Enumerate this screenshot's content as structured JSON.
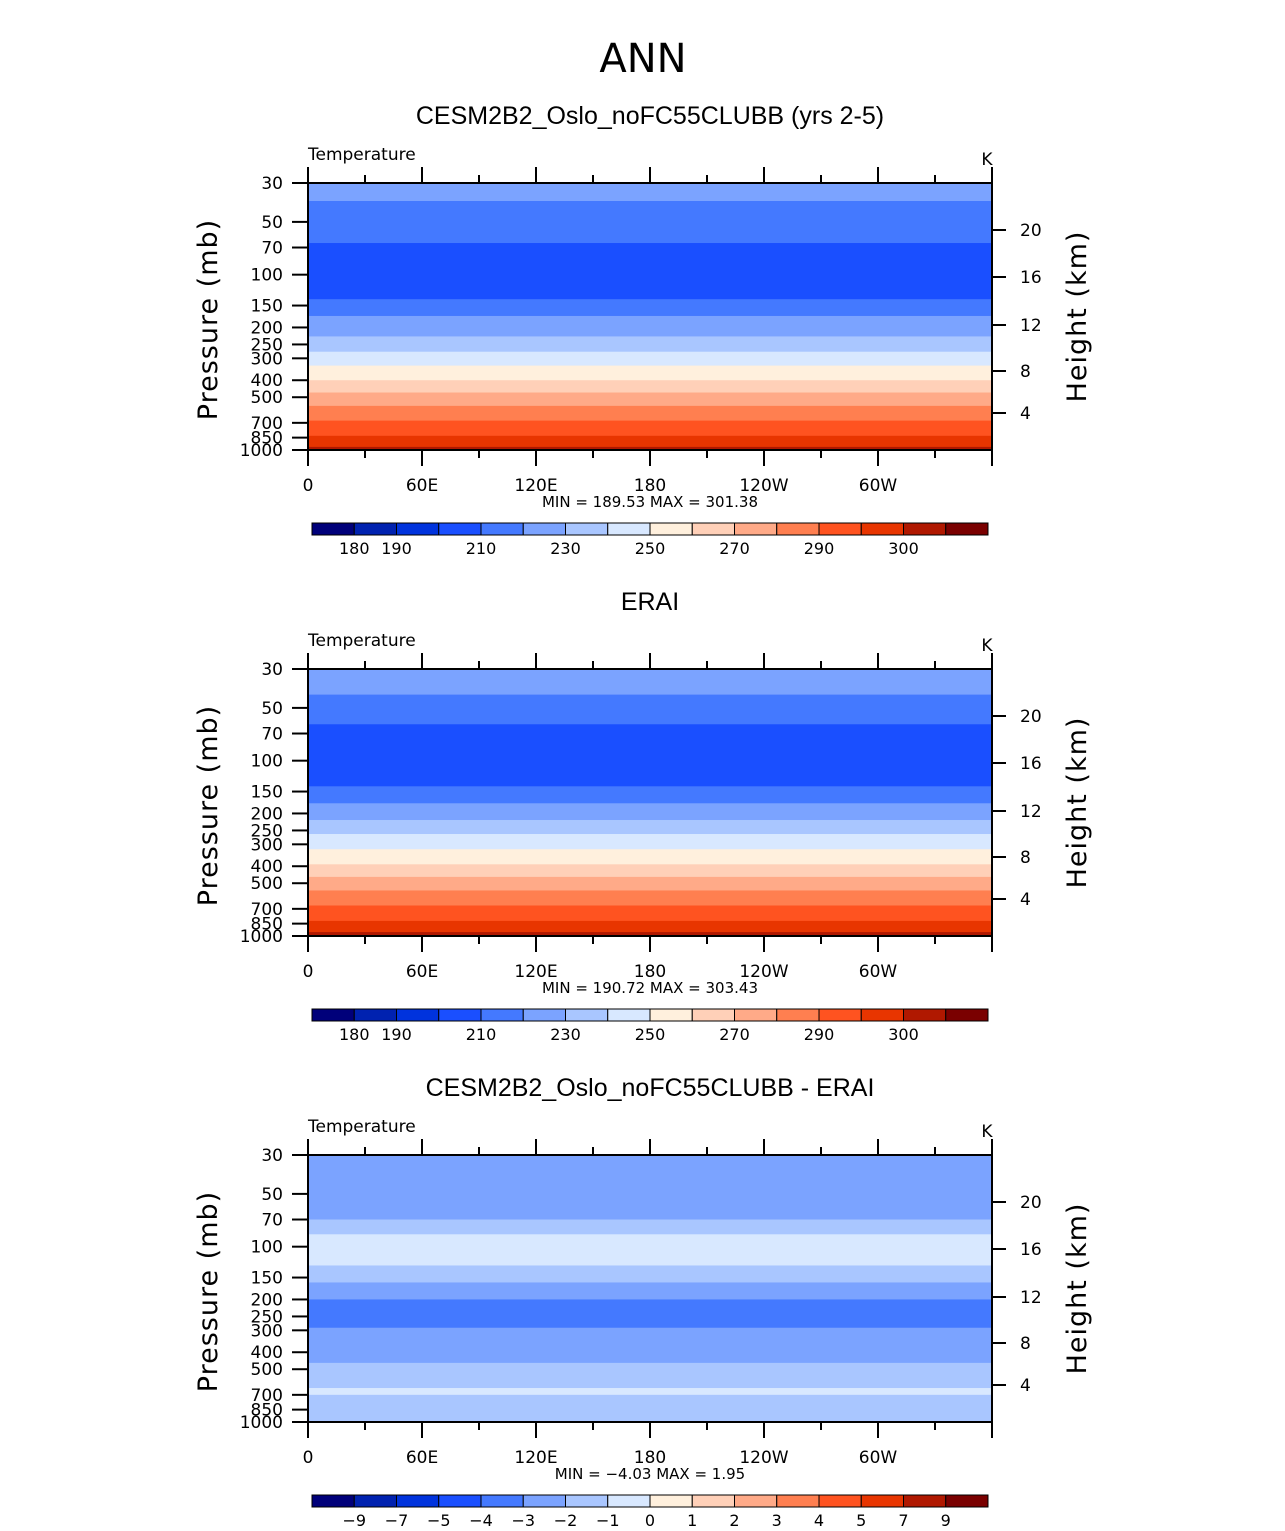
{
  "figure": {
    "title": "ANN",
    "colors": {
      "frame": "#000000",
      "text": "#000000",
      "background": "#ffffff"
    }
  },
  "chart_data": [
    {
      "type": "heatmap",
      "title": "CESM2B2_Oslo_noFC55CLUBB (yrs 2-5)",
      "variable_label": "Temperature",
      "units_label": "K",
      "ylabel_left": "Pressure (mb)",
      "ylabel_right": "Height (km)",
      "x_ticks": [
        "0",
        "60E",
        "120E",
        "180",
        "120W",
        "60W"
      ],
      "y_ticks_pressure": [
        "30",
        "50",
        "70",
        "100",
        "150",
        "200",
        "250",
        "300",
        "400",
        "500",
        "700",
        "850",
        "1000"
      ],
      "y_ticks_height": [
        "20",
        "16",
        "12",
        "8",
        "4"
      ],
      "stats_text": "MIN = 189.53   MAX = 301.38",
      "min": 189.53,
      "max": 301.38,
      "colorbar_labels": [
        "180",
        "190",
        "210",
        "230",
        "250",
        "270",
        "290",
        "300"
      ],
      "colorbar_colors": [
        "#00007a",
        "#0022b0",
        "#0033dd",
        "#1a4fff",
        "#4479ff",
        "#7ba3ff",
        "#a9c6ff",
        "#d8e8ff",
        "#fff0dd",
        "#ffd0b8",
        "#ffaa88",
        "#ff7f50",
        "#ff5320",
        "#e83500",
        "#b01800",
        "#7a0000"
      ],
      "layers": [
        {
          "p_top": 30,
          "p_bottom": 38,
          "color": "#7ba3ff"
        },
        {
          "p_top": 38,
          "p_bottom": 66,
          "color": "#4479ff"
        },
        {
          "p_top": 66,
          "p_bottom": 138,
          "color": "#1a4fff"
        },
        {
          "p_top": 138,
          "p_bottom": 172,
          "color": "#4479ff"
        },
        {
          "p_top": 172,
          "p_bottom": 225,
          "color": "#7ba3ff"
        },
        {
          "p_top": 225,
          "p_bottom": 275,
          "color": "#a9c6ff"
        },
        {
          "p_top": 275,
          "p_bottom": 330,
          "color": "#d8e8ff"
        },
        {
          "p_top": 330,
          "p_bottom": 400,
          "color": "#fff0dd"
        },
        {
          "p_top": 400,
          "p_bottom": 470,
          "color": "#ffd0b8"
        },
        {
          "p_top": 470,
          "p_bottom": 560,
          "color": "#ffaa88"
        },
        {
          "p_top": 560,
          "p_bottom": 680,
          "color": "#ff7f50"
        },
        {
          "p_top": 680,
          "p_bottom": 830,
          "color": "#ff5320"
        },
        {
          "p_top": 830,
          "p_bottom": 960,
          "color": "#e83500"
        },
        {
          "p_top": 960,
          "p_bottom": 1000,
          "color": "#b01800"
        }
      ]
    },
    {
      "type": "heatmap",
      "title": "ERAI",
      "variable_label": "Temperature",
      "units_label": "K",
      "ylabel_left": "Pressure (mb)",
      "ylabel_right": "Height (km)",
      "x_ticks": [
        "0",
        "60E",
        "120E",
        "180",
        "120W",
        "60W"
      ],
      "y_ticks_pressure": [
        "30",
        "50",
        "70",
        "100",
        "150",
        "200",
        "250",
        "300",
        "400",
        "500",
        "700",
        "850",
        "1000"
      ],
      "y_ticks_height": [
        "20",
        "16",
        "12",
        "8",
        "4"
      ],
      "stats_text": "MIN = 190.72   MAX = 303.43",
      "min": 190.72,
      "max": 303.43,
      "colorbar_labels": [
        "180",
        "190",
        "210",
        "230",
        "250",
        "270",
        "290",
        "300"
      ],
      "colorbar_colors": [
        "#00007a",
        "#0022b0",
        "#0033dd",
        "#1a4fff",
        "#4479ff",
        "#7ba3ff",
        "#a9c6ff",
        "#d8e8ff",
        "#fff0dd",
        "#ffd0b8",
        "#ffaa88",
        "#ff7f50",
        "#ff5320",
        "#e83500",
        "#b01800",
        "#7a0000"
      ],
      "layers": [
        {
          "p_top": 30,
          "p_bottom": 42,
          "color": "#7ba3ff"
        },
        {
          "p_top": 42,
          "p_bottom": 62,
          "color": "#4479ff"
        },
        {
          "p_top": 62,
          "p_bottom": 140,
          "color": "#1a4fff"
        },
        {
          "p_top": 140,
          "p_bottom": 175,
          "color": "#4479ff"
        },
        {
          "p_top": 175,
          "p_bottom": 218,
          "color": "#7ba3ff"
        },
        {
          "p_top": 218,
          "p_bottom": 262,
          "color": "#a9c6ff"
        },
        {
          "p_top": 262,
          "p_bottom": 320,
          "color": "#d8e8ff"
        },
        {
          "p_top": 320,
          "p_bottom": 390,
          "color": "#fff0dd"
        },
        {
          "p_top": 390,
          "p_bottom": 460,
          "color": "#ffd0b8"
        },
        {
          "p_top": 460,
          "p_bottom": 550,
          "color": "#ffaa88"
        },
        {
          "p_top": 550,
          "p_bottom": 670,
          "color": "#ff7f50"
        },
        {
          "p_top": 670,
          "p_bottom": 820,
          "color": "#ff5320"
        },
        {
          "p_top": 820,
          "p_bottom": 950,
          "color": "#e83500"
        },
        {
          "p_top": 950,
          "p_bottom": 1000,
          "color": "#b01800"
        }
      ]
    },
    {
      "type": "heatmap",
      "title": "CESM2B2_Oslo_noFC55CLUBB - ERAI",
      "variable_label": "Temperature",
      "units_label": "K",
      "ylabel_left": "Pressure (mb)",
      "ylabel_right": "Height (km)",
      "x_ticks": [
        "0",
        "60E",
        "120E",
        "180",
        "120W",
        "60W"
      ],
      "y_ticks_pressure": [
        "30",
        "50",
        "70",
        "100",
        "150",
        "200",
        "250",
        "300",
        "400",
        "500",
        "700",
        "850",
        "1000"
      ],
      "y_ticks_height": [
        "20",
        "16",
        "12",
        "8",
        "4"
      ],
      "stats_text": "MIN =   −4.03   MAX =   1.95",
      "min": -4.03,
      "max": 1.95,
      "colorbar_labels": [
        "−9",
        "−7",
        "−5",
        "−4",
        "−3",
        "−2",
        "−1",
        "0",
        "1",
        "2",
        "3",
        "4",
        "5",
        "7",
        "9"
      ],
      "colorbar_colors": [
        "#00007a",
        "#0022b0",
        "#0033dd",
        "#1a4fff",
        "#4479ff",
        "#7ba3ff",
        "#a9c6ff",
        "#d8e8ff",
        "#fff0dd",
        "#ffd0b8",
        "#ffaa88",
        "#ff7f50",
        "#ff5320",
        "#e83500",
        "#b01800",
        "#7a0000"
      ],
      "layers": [
        {
          "p_top": 30,
          "p_bottom": 70,
          "color": "#7ba3ff"
        },
        {
          "p_top": 70,
          "p_bottom": 85,
          "color": "#a9c6ff"
        },
        {
          "p_top": 85,
          "p_bottom": 128,
          "color": "#d8e8ff"
        },
        {
          "p_top": 128,
          "p_bottom": 160,
          "color": "#a9c6ff"
        },
        {
          "p_top": 160,
          "p_bottom": 200,
          "color": "#7ba3ff"
        },
        {
          "p_top": 200,
          "p_bottom": 290,
          "color": "#4479ff"
        },
        {
          "p_top": 290,
          "p_bottom": 460,
          "color": "#7ba3ff"
        },
        {
          "p_top": 460,
          "p_bottom": 640,
          "color": "#a9c6ff"
        },
        {
          "p_top": 640,
          "p_bottom": 700,
          "color": "#d8e8ff"
        },
        {
          "p_top": 700,
          "p_bottom": 1000,
          "color": "#a9c6ff"
        }
      ]
    }
  ]
}
